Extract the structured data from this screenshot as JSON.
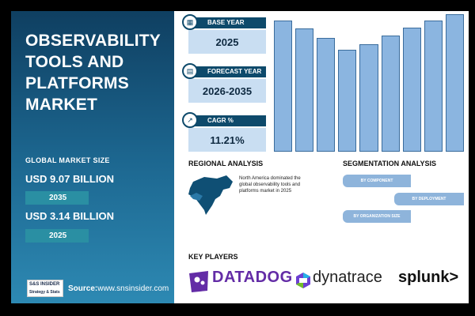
{
  "title": "OBSERVABILITY TOOLS AND PLATFORMS MARKET",
  "left_panel": {
    "global_market_size_label": "GLOBAL MARKET SIZE",
    "value_1": "USD 9.07 BILLION",
    "year_1": "2035",
    "value_2": "USD 3.14 BILLION",
    "year_2": "2025",
    "source_label": "Source:",
    "source_url": "www.snsinsider.com",
    "logo_top": "S&S INSIDER",
    "logo_bottom": "Strategy & Stats"
  },
  "stats": [
    {
      "label": "BASE YEAR",
      "value": "2025",
      "icon": "calendar-icon"
    },
    {
      "label": "FORECAST YEAR",
      "value": "2026-2035",
      "icon": "chart-icon"
    },
    {
      "label": "CAGR %",
      "value": "11.21%",
      "icon": "growth-icon"
    }
  ],
  "chart_data": {
    "type": "bar",
    "categories": [
      "",
      "",
      "",
      "",
      "",
      "",
      "",
      "",
      ""
    ],
    "values": [
      100,
      94,
      87,
      78,
      82,
      89,
      95,
      100,
      105
    ],
    "ylim": [
      0,
      105
    ],
    "grid": false,
    "title": "",
    "xlabel": "",
    "ylabel": ""
  },
  "regional": {
    "heading": "REGIONAL ANALYSIS",
    "note": "North America dominated the global observability tools and platforms market in 2025"
  },
  "segmentation": {
    "heading": "SEGMENTATION ANALYSIS",
    "items": [
      "BY COMPONENT",
      "BY DEPLOYMENT",
      "BY ORGANIZATION SIZE"
    ]
  },
  "key_players": {
    "heading": "KEY PLAYERS",
    "players": [
      "DATADOG",
      "dynatrace",
      "splunk>"
    ]
  },
  "colors": {
    "bar": "#8bb5e0",
    "dark_blue": "#0e4a6b",
    "light_blue": "#c9def2",
    "teal": "#2a8fa3",
    "datadog_purple": "#632ca6"
  }
}
